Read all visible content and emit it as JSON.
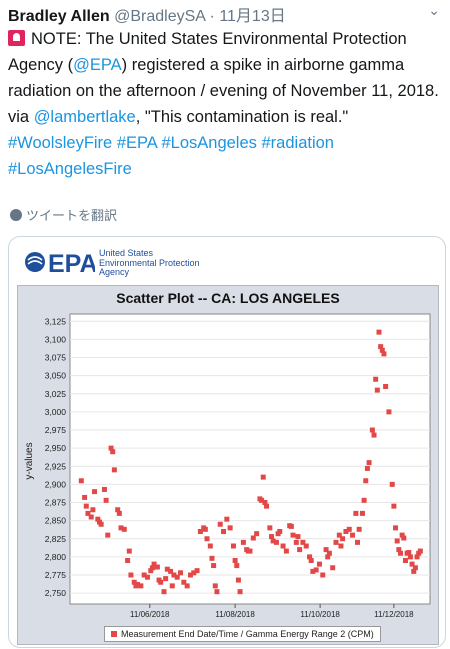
{
  "tweet": {
    "name": "Bradley Allen",
    "handle": "@BradleySA",
    "separator": "·",
    "date": "11月13日",
    "segments": {
      "a": "NOTE: The United States Environmental Protection Agency (",
      "epa_mention": "@EPA",
      "b": ") registered a spike in airborne gamma radiation on the afternoon / evening of November 11, 2018.",
      "via": "via ",
      "lambert": "@lambertlake",
      "c": ", \"This contamination is real.\"",
      "hashtags": [
        "#WoolsleyFire",
        "#EPA",
        "#LosAngeles",
        "#radiation",
        "#LosAngelesFire"
      ]
    },
    "translate": "ツイートを翻訳",
    "icons": {
      "siren": "siren-icon",
      "globe": "globe-icon",
      "chevron": "chevron-down-icon"
    }
  },
  "card": {
    "logo_text": "EPA",
    "logo_sub": [
      "United States",
      "Environmental Protection",
      "Agency"
    ],
    "brand_color": "#1f4e9b"
  },
  "chart_data": {
    "type": "scatter",
    "title": "Scatter Plot -- CA: LOS ANGELES",
    "ylabel": "y-values",
    "legend": "Measurement End Date/Time / Gamma Energy Range 2 (CPM)",
    "series_color": "#e34848",
    "ylim": [
      2735,
      3135
    ],
    "yticks": [
      2750,
      2775,
      2800,
      2825,
      2850,
      2875,
      2900,
      2925,
      2950,
      2975,
      3000,
      3025,
      3050,
      3075,
      3100,
      3125
    ],
    "ytick_labels": [
      "2,750",
      "2,775",
      "2,800",
      "2,825",
      "2,850",
      "2,875",
      "2,900",
      "2,925",
      "2,950",
      "2,975",
      "3,000",
      "3,025",
      "3,050",
      "3,075",
      "3,100",
      "3,125"
    ],
    "xlim": [
      0,
      100
    ],
    "xticks": [
      {
        "x": 21.7,
        "label": "11/06/2018"
      },
      {
        "x": 47.5,
        "label": "11/08/2018"
      },
      {
        "x": 73.2,
        "label": "11/10/2018"
      },
      {
        "x": 95.5,
        "label": "11/12/2018"
      }
    ],
    "points": [
      [
        1,
        2905
      ],
      [
        2,
        2882
      ],
      [
        2.5,
        2870
      ],
      [
        3,
        2860
      ],
      [
        4,
        2855
      ],
      [
        4.5,
        2865
      ],
      [
        5,
        2890
      ],
      [
        6,
        2852
      ],
      [
        6.5,
        2848
      ],
      [
        7,
        2845
      ],
      [
        8,
        2893
      ],
      [
        8.5,
        2878
      ],
      [
        9,
        2830
      ],
      [
        10,
        2950
      ],
      [
        10.5,
        2945
      ],
      [
        11,
        2920
      ],
      [
        12,
        2865
      ],
      [
        12.5,
        2860
      ],
      [
        13,
        2840
      ],
      [
        14,
        2838
      ],
      [
        15,
        2795
      ],
      [
        15.5,
        2808
      ],
      [
        16,
        2775
      ],
      [
        17,
        2765
      ],
      [
        17.5,
        2760
      ],
      [
        18,
        2762
      ],
      [
        19,
        2760
      ],
      [
        20,
        2775
      ],
      [
        21,
        2772
      ],
      [
        22,
        2781
      ],
      [
        22.5,
        2785
      ],
      [
        23,
        2790
      ],
      [
        24,
        2786
      ],
      [
        24.5,
        2768
      ],
      [
        25,
        2765
      ],
      [
        26,
        2752
      ],
      [
        26.5,
        2770
      ],
      [
        27,
        2783
      ],
      [
        28,
        2780
      ],
      [
        28.5,
        2760
      ],
      [
        29,
        2775
      ],
      [
        30,
        2772
      ],
      [
        31,
        2778
      ],
      [
        32,
        2765
      ],
      [
        33,
        2760
      ],
      [
        34,
        2775
      ],
      [
        35,
        2778
      ],
      [
        36,
        2781
      ],
      [
        37,
        2835
      ],
      [
        38,
        2840
      ],
      [
        38.5,
        2838
      ],
      [
        39,
        2825
      ],
      [
        40,
        2815
      ],
      [
        40.5,
        2798
      ],
      [
        41,
        2788
      ],
      [
        41.5,
        2760
      ],
      [
        42,
        2752
      ],
      [
        43,
        2845
      ],
      [
        44,
        2835
      ],
      [
        45,
        2852
      ],
      [
        46,
        2840
      ],
      [
        47,
        2815
      ],
      [
        47.5,
        2795
      ],
      [
        48,
        2788
      ],
      [
        48.5,
        2768
      ],
      [
        49,
        2752
      ],
      [
        50,
        2820
      ],
      [
        51,
        2810
      ],
      [
        51.5,
        2808
      ],
      [
        52,
        2808
      ],
      [
        53,
        2826
      ],
      [
        54,
        2832
      ],
      [
        55,
        2880
      ],
      [
        55.5,
        2878
      ],
      [
        56,
        2910
      ],
      [
        56.5,
        2875
      ],
      [
        57,
        2870
      ],
      [
        58,
        2840
      ],
      [
        58.5,
        2828
      ],
      [
        59,
        2822
      ],
      [
        60,
        2820
      ],
      [
        60.5,
        2832
      ],
      [
        61,
        2835
      ],
      [
        62,
        2815
      ],
      [
        63,
        2808
      ],
      [
        64,
        2843
      ],
      [
        64.5,
        2842
      ],
      [
        65,
        2830
      ],
      [
        66,
        2820
      ],
      [
        66.5,
        2828
      ],
      [
        67,
        2810
      ],
      [
        68,
        2820
      ],
      [
        69,
        2815
      ],
      [
        70,
        2800
      ],
      [
        70.5,
        2795
      ],
      [
        71,
        2780
      ],
      [
        72,
        2782
      ],
      [
        73,
        2790
      ],
      [
        74,
        2775
      ],
      [
        75,
        2810
      ],
      [
        75.5,
        2800
      ],
      [
        76,
        2805
      ],
      [
        77,
        2785
      ],
      [
        78,
        2820
      ],
      [
        79,
        2830
      ],
      [
        79.5,
        2815
      ],
      [
        80,
        2825
      ],
      [
        81,
        2835
      ],
      [
        82,
        2838
      ],
      [
        83,
        2830
      ],
      [
        84,
        2860
      ],
      [
        84.5,
        2820
      ],
      [
        85,
        2838
      ],
      [
        86,
        2860
      ],
      [
        86.5,
        2878
      ],
      [
        87,
        2905
      ],
      [
        87.5,
        2922
      ],
      [
        88,
        2930
      ],
      [
        89,
        2975
      ],
      [
        89.5,
        2968
      ],
      [
        90,
        3045
      ],
      [
        90.5,
        3030
      ],
      [
        91,
        3110
      ],
      [
        91.5,
        3090
      ],
      [
        92,
        3085
      ],
      [
        92.5,
        3080
      ],
      [
        93,
        3035
      ],
      [
        94,
        3000
      ],
      [
        95,
        2900
      ],
      [
        95.5,
        2870
      ],
      [
        96,
        2840
      ],
      [
        96.5,
        2822
      ],
      [
        97,
        2810
      ],
      [
        97.5,
        2805
      ],
      [
        98,
        2830
      ],
      [
        98.5,
        2826
      ],
      [
        99,
        2795
      ],
      [
        99.5,
        2805
      ],
      [
        100,
        2806
      ],
      [
        100.5,
        2800
      ],
      [
        101,
        2790
      ],
      [
        101.5,
        2780
      ],
      [
        102,
        2785
      ],
      [
        102.5,
        2800
      ],
      [
        103,
        2805
      ],
      [
        103.5,
        2808
      ]
    ]
  }
}
